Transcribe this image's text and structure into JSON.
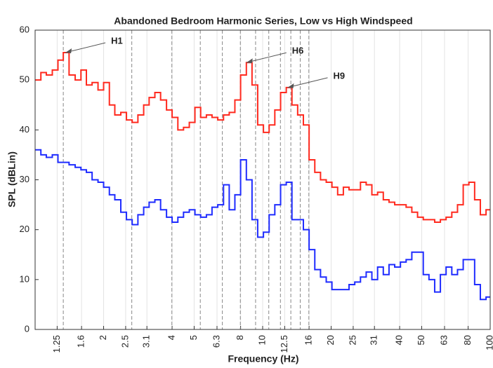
{
  "chart_data": {
    "type": "line",
    "title": "Abandoned Bedroom Harmonic Series, Low vs High Windspeed",
    "xlabel": "Frequency (Hz)",
    "ylabel": "SPL (dBLin)",
    "xscale": "log",
    "step": true,
    "grid": true,
    "xlim": [
      1,
      100
    ],
    "ylim": [
      0,
      60
    ],
    "xticks": [
      1.25,
      1.6,
      2,
      2.5,
      3.1,
      4,
      5,
      6.3,
      8,
      10,
      12.5,
      16,
      20,
      25,
      31,
      40,
      50,
      63,
      80,
      100
    ],
    "yticks": [
      0,
      10,
      20,
      30,
      40,
      50,
      60
    ],
    "harmonics": [
      1.33,
      2.66,
      3.99,
      5.32,
      6.65,
      7.98,
      9.31,
      10.64,
      11.97,
      13.3,
      14.63,
      15.96
    ],
    "annotations": [
      {
        "text": "H1",
        "x": 1.33,
        "y": 55.5
      },
      {
        "text": "H6",
        "x": 8.3,
        "y": 53.5
      },
      {
        "text": "H9",
        "x": 12.6,
        "y": 48.5
      }
    ],
    "x": [
      1.0,
      1.06,
      1.12,
      1.19,
      1.26,
      1.33,
      1.41,
      1.5,
      1.59,
      1.68,
      1.78,
      1.89,
      2.0,
      2.12,
      2.24,
      2.38,
      2.52,
      2.67,
      2.83,
      3.0,
      3.17,
      3.36,
      3.56,
      3.78,
      4.0,
      4.24,
      4.49,
      4.76,
      5.04,
      5.34,
      5.66,
      5.99,
      6.35,
      6.73,
      7.13,
      7.55,
      8.0,
      8.48,
      8.98,
      9.51,
      10.08,
      10.68,
      11.31,
      11.99,
      12.7,
      13.45,
      14.25,
      15.1,
      16.0,
      16.95,
      17.96,
      19.03,
      20.16,
      21.36,
      22.63,
      23.97,
      25.4,
      26.91,
      28.51,
      30.2,
      32.0,
      33.9,
      35.92,
      38.05,
      40.32,
      42.71,
      45.25,
      47.95,
      50.8,
      53.82,
      57.02,
      60.41,
      64.0,
      67.81,
      71.84,
      76.11,
      80.63,
      85.43,
      90.51,
      95.89
    ],
    "series": [
      {
        "color": "#ff2a1f",
        "values": [
          50,
          51.5,
          51,
          52,
          54,
          55.5,
          51,
          50,
          52,
          49,
          49.5,
          48,
          49.5,
          45,
          43,
          43.5,
          42,
          41.5,
          43,
          45,
          46.5,
          47.5,
          46,
          44,
          42.5,
          40,
          40.5,
          41.5,
          44.5,
          42.5,
          43,
          42.5,
          42,
          43,
          43.5,
          46,
          51,
          53.5,
          49,
          41,
          39.5,
          41,
          44,
          47.5,
          48.5,
          45,
          43,
          41,
          34,
          31.5,
          30,
          29.5,
          28.5,
          27,
          28.5,
          28,
          28,
          29.5,
          29,
          27,
          27.5,
          26,
          25.5,
          25,
          25,
          24.5,
          23.5,
          22.5,
          22,
          22,
          21.5,
          22,
          22.5,
          23.5,
          25,
          29,
          29.5,
          26,
          23,
          24
        ]
      },
      {
        "color": "#1f2cff",
        "values": [
          36,
          35,
          34.5,
          35,
          33.5,
          33.5,
          33,
          32.5,
          32,
          31.5,
          30,
          29.5,
          28.5,
          27,
          26,
          23.5,
          22,
          21,
          23,
          24.5,
          25.5,
          26,
          24,
          22.5,
          21.5,
          22.5,
          23.5,
          24,
          23,
          22.5,
          23,
          24.5,
          25,
          29,
          24,
          27,
          34,
          30,
          22,
          18.5,
          19.5,
          23,
          25,
          29,
          29.5,
          22,
          22,
          20,
          16,
          12,
          10.5,
          9.5,
          8,
          8,
          8,
          9,
          9.5,
          10.5,
          11.5,
          10,
          12.5,
          11,
          13,
          12.5,
          13.5,
          14,
          15.5,
          15.5,
          11,
          10,
          7.5,
          11,
          12.5,
          11,
          12,
          14,
          14,
          9,
          6,
          6.5
        ]
      }
    ]
  }
}
